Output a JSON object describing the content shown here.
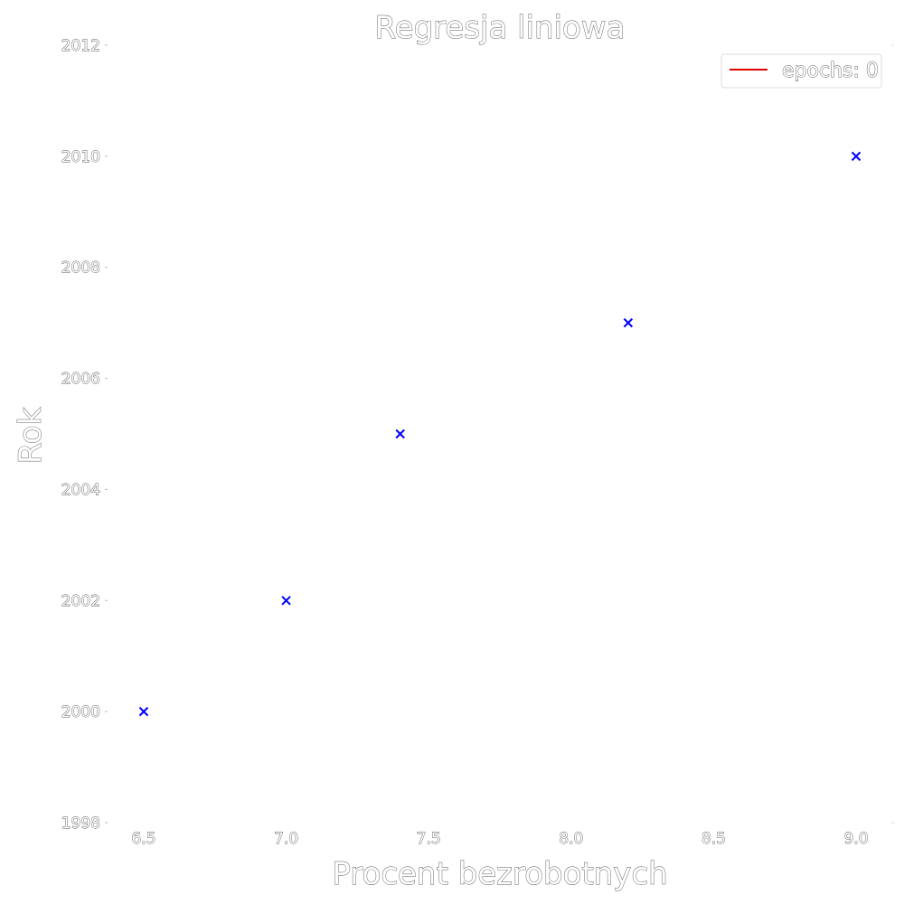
{
  "chart_data": {
    "type": "scatter",
    "title": "Regresja liniowa",
    "xlabel": "Procent bezrobotnych",
    "ylabel": "Rok",
    "xlim": [
      6.37,
      9.13
    ],
    "ylim": [
      1998,
      2012
    ],
    "x_ticks": [
      6.5,
      7.0,
      7.5,
      8.0,
      8.5,
      9.0
    ],
    "x_tick_labels": [
      "6.5",
      "7.0",
      "7.5",
      "8.0",
      "8.5",
      "9.0"
    ],
    "y_ticks": [
      1998,
      2000,
      2002,
      2004,
      2006,
      2008,
      2010,
      2012
    ],
    "y_tick_labels": [
      "1998",
      "2000",
      "2002",
      "2004",
      "2006",
      "2008",
      "2010",
      "2012"
    ],
    "grid": false,
    "legend_position": "top-right",
    "series": [
      {
        "kind": "points",
        "marker": "x",
        "color": "#0000ff",
        "x": [
          6.5,
          7.0,
          7.4,
          8.2,
          9.0
        ],
        "y": [
          2000,
          2002,
          2005,
          2007,
          2010
        ]
      },
      {
        "kind": "line",
        "name": "epochs: 0",
        "color": "#e00000",
        "x": [],
        "y": []
      }
    ]
  }
}
